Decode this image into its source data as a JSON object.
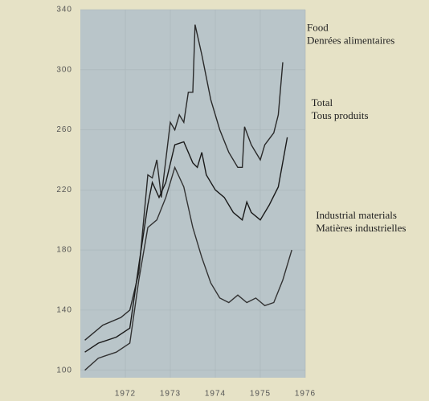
{
  "chart_data": {
    "type": "line",
    "xlim": [
      1971,
      1976
    ],
    "xticks": [
      1972,
      1973,
      1974,
      1975,
      1976
    ],
    "ylim": [
      95,
      340
    ],
    "yticks": [
      100,
      140,
      180,
      220,
      260,
      300,
      340
    ],
    "series": [
      {
        "name": "Food",
        "name_fr": "Denrées alimentaires",
        "color": "#2a2a2a",
        "x": [
          1971.1,
          1971.5,
          1971.9,
          1972.1,
          1972.3,
          1972.5,
          1972.6,
          1972.7,
          1972.8,
          1973.0,
          1973.1,
          1973.2,
          1973.3,
          1973.4,
          1973.5,
          1973.55,
          1973.7,
          1973.9,
          1974.1,
          1974.3,
          1974.5,
          1974.6,
          1974.65,
          1974.8,
          1974.9,
          1975.0,
          1975.1,
          1975.3,
          1975.4,
          1975.5
        ],
        "values": [
          120,
          130,
          135,
          140,
          165,
          230,
          228,
          240,
          215,
          265,
          260,
          270,
          265,
          285,
          285,
          330,
          310,
          280,
          260,
          245,
          235,
          235,
          262,
          250,
          245,
          240,
          250,
          258,
          270,
          305
        ]
      },
      {
        "name": "Total",
        "name_fr": "Tous produits",
        "color": "#1a1a1a",
        "x": [
          1971.1,
          1971.4,
          1971.8,
          1972.1,
          1972.3,
          1972.5,
          1972.6,
          1972.75,
          1972.9,
          1973.1,
          1973.3,
          1973.5,
          1973.6,
          1973.7,
          1973.8,
          1974.0,
          1974.2,
          1974.4,
          1974.6,
          1974.7,
          1974.8,
          1975.0,
          1975.2,
          1975.4,
          1975.6
        ],
        "values": [
          112,
          118,
          122,
          128,
          170,
          210,
          225,
          215,
          225,
          250,
          252,
          238,
          235,
          245,
          230,
          220,
          215,
          205,
          200,
          212,
          205,
          200,
          210,
          222,
          255
        ]
      },
      {
        "name": "Industrial materials",
        "name_fr": "Matières industrielles",
        "color": "#333333",
        "x": [
          1971.1,
          1971.4,
          1971.8,
          1972.1,
          1972.3,
          1972.5,
          1972.7,
          1972.9,
          1973.1,
          1973.3,
          1973.5,
          1973.7,
          1973.9,
          1974.1,
          1974.3,
          1974.5,
          1974.7,
          1974.9,
          1975.1,
          1975.3,
          1975.5,
          1975.7
        ],
        "values": [
          100,
          108,
          112,
          118,
          160,
          195,
          200,
          215,
          235,
          222,
          195,
          175,
          158,
          148,
          145,
          150,
          145,
          148,
          143,
          145,
          160,
          180
        ]
      }
    ]
  }
}
